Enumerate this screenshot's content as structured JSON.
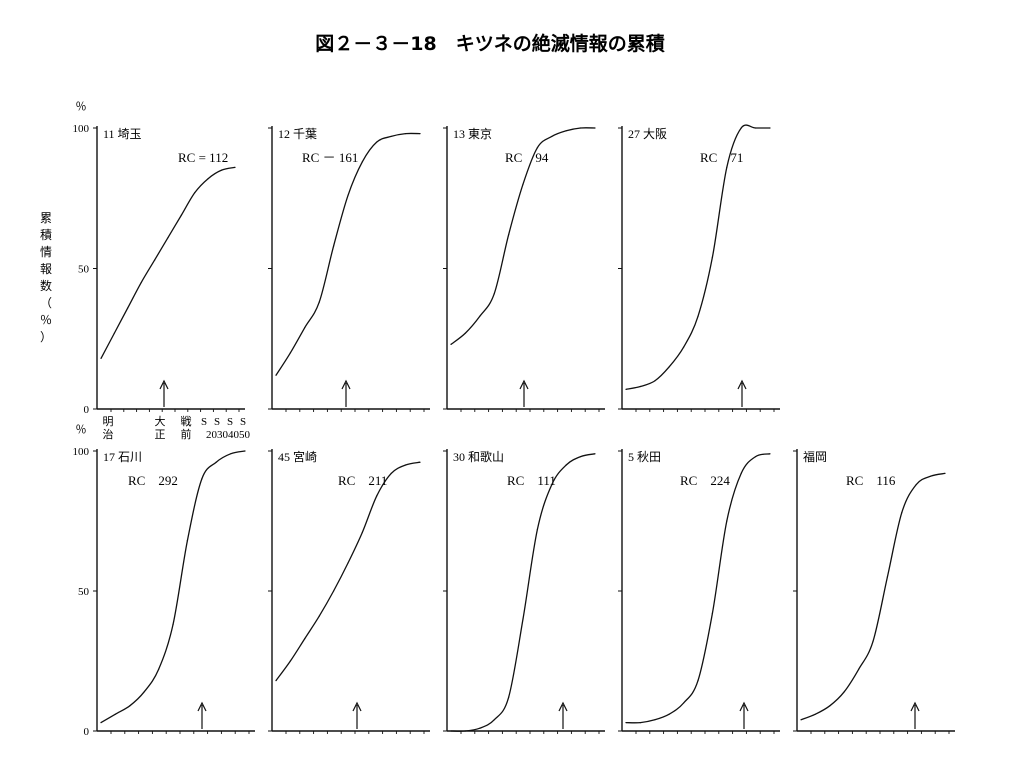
{
  "figure": {
    "title": "図２－３－18　キツネの絶滅情報の累積",
    "ylabel_chars": [
      "累",
      "積",
      "情",
      "報",
      "数",
      "（",
      "％",
      "）"
    ],
    "percent_sign": "％",
    "yticks": [
      "100",
      "50",
      "0"
    ],
    "xlabel_chars": [
      {
        "top": "明",
        "bottom": "治"
      },
      {
        "top": "大",
        "bottom": "正"
      },
      {
        "top": "戦",
        "bottom": "前"
      }
    ],
    "xlabel_s": [
      "S",
      "S",
      "S",
      "S"
    ],
    "xlabel_s_years": "20304050"
  },
  "chart_data": [
    {
      "type": "line",
      "title": "11 埼玉",
      "rc": "RC = 112",
      "ylim": [
        0,
        100
      ],
      "x": [
        0,
        1,
        2,
        3,
        4,
        5,
        6,
        7,
        8,
        9,
        10
      ],
      "values": [
        18,
        27,
        36,
        45,
        53,
        61,
        69,
        77,
        82,
        85,
        86
      ]
    },
    {
      "type": "line",
      "title": "12 千葉",
      "rc": "RC － 161",
      "ylim": [
        0,
        100
      ],
      "x": [
        0,
        1,
        2,
        3,
        4,
        5,
        6,
        7,
        8,
        9,
        10
      ],
      "values": [
        12,
        20,
        29,
        38,
        58,
        76,
        88,
        95,
        97,
        98,
        98
      ]
    },
    {
      "type": "line",
      "title": "13 東京",
      "rc": "RC　94",
      "ylim": [
        0,
        100
      ],
      "x": [
        0,
        1,
        2,
        3,
        4,
        5,
        6,
        7,
        8,
        9,
        10
      ],
      "values": [
        23,
        27,
        33,
        41,
        62,
        80,
        93,
        97,
        99,
        100,
        100
      ]
    },
    {
      "type": "line",
      "title": "27 大阪",
      "rc": "RC　71",
      "ylim": [
        0,
        100
      ],
      "x": [
        0,
        1,
        2,
        3,
        4,
        5,
        6,
        7,
        8,
        9,
        10
      ],
      "values": [
        7,
        8,
        10,
        15,
        22,
        33,
        54,
        86,
        100,
        100,
        100
      ]
    },
    {
      "type": "line",
      "title": "17 石川",
      "rc": "RC　292",
      "ylim": [
        0,
        100
      ],
      "x": [
        0,
        1,
        2,
        3,
        4,
        5,
        6,
        7,
        8,
        9,
        10
      ],
      "values": [
        3,
        6,
        9,
        14,
        22,
        38,
        68,
        90,
        96,
        99,
        100
      ]
    },
    {
      "type": "line",
      "title": "45 宮崎",
      "rc": "RC　211",
      "ylim": [
        0,
        100
      ],
      "x": [
        0,
        1,
        2,
        3,
        4,
        5,
        6,
        7,
        8,
        9,
        10
      ],
      "values": [
        18,
        25,
        33,
        41,
        50,
        60,
        71,
        84,
        92,
        95,
        96
      ]
    },
    {
      "type": "line",
      "title": "30 和歌山",
      "rc": "RC　111",
      "ylim": [
        0,
        100
      ],
      "x": [
        0,
        1,
        2,
        3,
        4,
        5,
        6,
        7,
        8,
        9,
        10
      ],
      "values": [
        0,
        0,
        1,
        4,
        12,
        40,
        72,
        88,
        95,
        98,
        99
      ]
    },
    {
      "type": "line",
      "title": "5 秋田",
      "rc": "RC　224",
      "ylim": [
        0,
        100
      ],
      "x": [
        0,
        1,
        2,
        3,
        4,
        5,
        6,
        7,
        8,
        9,
        10
      ],
      "values": [
        3,
        3,
        4,
        6,
        10,
        18,
        42,
        75,
        92,
        98,
        99
      ]
    },
    {
      "type": "line",
      "title": "福岡",
      "rc": "RC　116",
      "ylim": [
        0,
        100
      ],
      "x": [
        0,
        1,
        2,
        3,
        4,
        5,
        6,
        7,
        8,
        9,
        10
      ],
      "values": [
        4,
        6,
        9,
        14,
        22,
        32,
        55,
        78,
        88,
        91,
        92
      ]
    }
  ]
}
